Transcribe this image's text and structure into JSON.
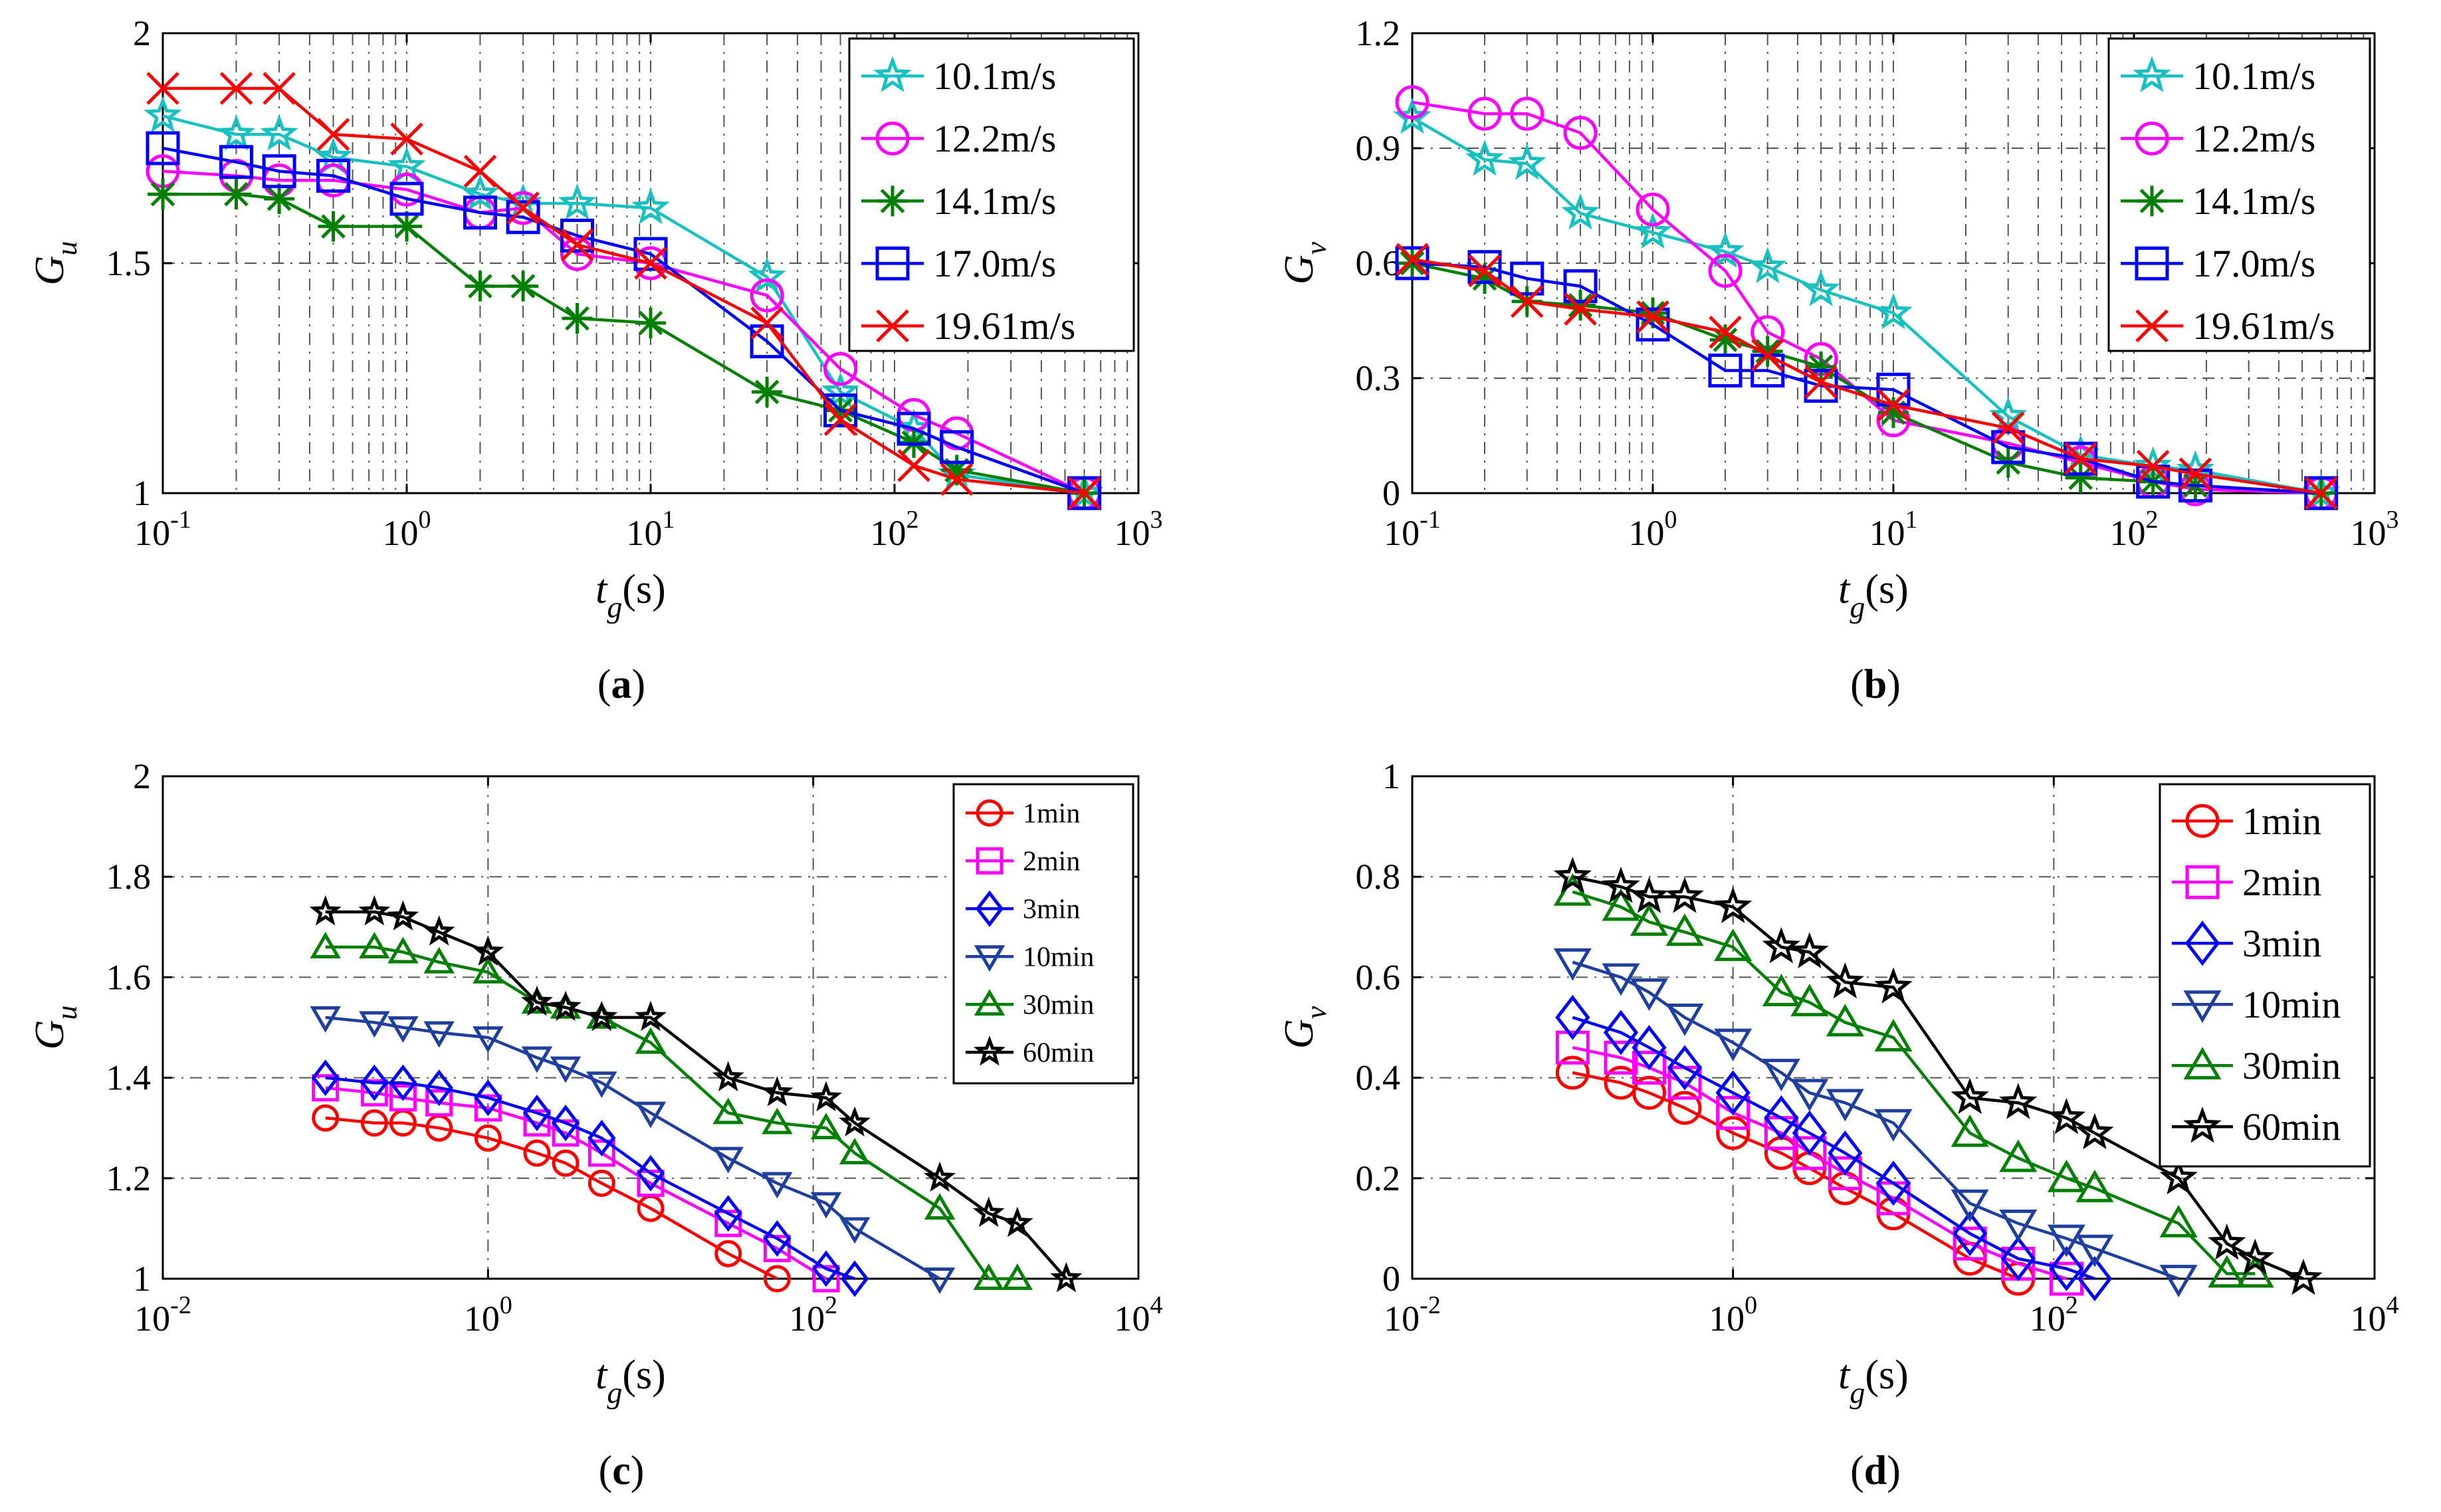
{
  "chart_data": [
    {
      "id": "a",
      "type": "line",
      "caption": "(a)",
      "xscale": "log",
      "xlim": [
        0.1,
        1000
      ],
      "xticks": [
        {
          "v": 0.1,
          "b": "10",
          "e": "-1"
        },
        {
          "v": 1,
          "b": "10",
          "e": "0"
        },
        {
          "v": 10,
          "b": "10",
          "e": "1"
        },
        {
          "v": 100,
          "b": "10",
          "e": "2"
        },
        {
          "v": 1000,
          "b": "10",
          "e": "3"
        }
      ],
      "ylim": [
        1,
        2
      ],
      "yticks": [
        {
          "v": 1,
          "l": "1"
        },
        {
          "v": 1.5,
          "l": "1.5"
        },
        {
          "v": 2,
          "l": "2"
        }
      ],
      "xlabel": {
        "main": "t",
        "sub": "g",
        "rest": "(s)"
      },
      "ylabel": {
        "main": "G",
        "sub": "u"
      },
      "grid": "minor",
      "legend_position": "top-right",
      "series": [
        {
          "name": "10.1m/s",
          "color": "#19C0C0",
          "marker": "star5",
          "x": [
            0.1,
            0.2,
            0.3,
            0.5,
            1,
            2,
            3,
            5,
            10,
            30,
            60,
            120,
            180,
            600
          ],
          "y": [
            1.82,
            1.78,
            1.78,
            1.73,
            1.71,
            1.65,
            1.63,
            1.63,
            1.62,
            1.47,
            1.22,
            1.14,
            1.04,
            1.0
          ]
        },
        {
          "name": "12.2m/s",
          "color": "#FF00FF",
          "marker": "circle",
          "x": [
            0.1,
            0.2,
            0.3,
            0.5,
            1,
            2,
            3,
            5,
            10,
            30,
            60,
            120,
            180,
            600
          ],
          "y": [
            1.7,
            1.69,
            1.68,
            1.68,
            1.66,
            1.61,
            1.62,
            1.52,
            1.5,
            1.43,
            1.27,
            1.17,
            1.13,
            1.0
          ]
        },
        {
          "name": "14.1m/s",
          "color": "#007F00",
          "marker": "asterisk",
          "x": [
            0.1,
            0.2,
            0.3,
            0.5,
            1,
            2,
            3,
            5,
            10,
            30,
            60,
            120,
            180,
            600
          ],
          "y": [
            1.65,
            1.65,
            1.64,
            1.58,
            1.58,
            1.45,
            1.45,
            1.38,
            1.37,
            1.22,
            1.18,
            1.11,
            1.05,
            1.0
          ]
        },
        {
          "name": "17.0m/s",
          "color": "#0000FF",
          "marker": "square",
          "x": [
            0.1,
            0.2,
            0.3,
            0.5,
            1,
            2,
            3,
            5,
            10,
            30,
            60,
            120,
            180,
            600
          ],
          "y": [
            1.75,
            1.72,
            1.7,
            1.69,
            1.64,
            1.61,
            1.6,
            1.56,
            1.52,
            1.33,
            1.18,
            1.14,
            1.1,
            1.0
          ]
        },
        {
          "name": "19.61m/s",
          "color": "#FF0000",
          "marker": "x",
          "x": [
            0.1,
            0.2,
            0.3,
            0.5,
            1,
            2,
            3,
            5,
            10,
            30,
            60,
            120,
            180,
            600
          ],
          "y": [
            1.88,
            1.88,
            1.88,
            1.78,
            1.77,
            1.7,
            1.62,
            1.54,
            1.5,
            1.37,
            1.16,
            1.06,
            1.03,
            1.0
          ]
        }
      ]
    },
    {
      "id": "b",
      "type": "line",
      "caption": "(b)",
      "xscale": "log",
      "xlim": [
        0.1,
        1000
      ],
      "xticks": [
        {
          "v": 0.1,
          "b": "10",
          "e": "-1"
        },
        {
          "v": 1,
          "b": "10",
          "e": "0"
        },
        {
          "v": 10,
          "b": "10",
          "e": "1"
        },
        {
          "v": 100,
          "b": "10",
          "e": "2"
        },
        {
          "v": 1000,
          "b": "10",
          "e": "3"
        }
      ],
      "ylim": [
        0,
        1.2
      ],
      "yticks": [
        {
          "v": 0,
          "l": "0"
        },
        {
          "v": 0.3,
          "l": "0.3"
        },
        {
          "v": 0.6,
          "l": "0.6"
        },
        {
          "v": 0.9,
          "l": "0.9"
        },
        {
          "v": 1.2,
          "l": "1.2"
        }
      ],
      "xlabel": {
        "main": "t",
        "sub": "g",
        "rest": "(s)"
      },
      "ylabel": {
        "main": "G",
        "sub": "v"
      },
      "grid": "minor",
      "legend_position": "top-right",
      "series": [
        {
          "name": "10.1m/s",
          "color": "#19C0C0",
          "marker": "star5",
          "x": [
            0.1,
            0.2,
            0.3,
            0.5,
            1,
            2,
            3,
            5,
            10,
            30,
            60,
            120,
            180,
            600
          ],
          "y": [
            0.98,
            0.87,
            0.86,
            0.73,
            0.68,
            0.63,
            0.59,
            0.53,
            0.47,
            0.2,
            0.1,
            0.07,
            0.06,
            0.0
          ]
        },
        {
          "name": "12.2m/s",
          "color": "#FF00FF",
          "marker": "circle",
          "x": [
            0.1,
            0.2,
            0.3,
            0.5,
            1,
            2,
            3,
            5,
            10,
            30,
            60,
            120,
            180,
            600
          ],
          "y": [
            1.02,
            0.99,
            0.99,
            0.94,
            0.74,
            0.58,
            0.42,
            0.35,
            0.19,
            0.13,
            0.08,
            0.03,
            0.01,
            0.0
          ]
        },
        {
          "name": "14.1m/s",
          "color": "#007F00",
          "marker": "asterisk",
          "x": [
            0.1,
            0.2,
            0.3,
            0.5,
            1,
            2,
            3,
            5,
            10,
            30,
            60,
            120,
            180,
            600
          ],
          "y": [
            0.6,
            0.56,
            0.5,
            0.49,
            0.47,
            0.4,
            0.37,
            0.33,
            0.21,
            0.08,
            0.04,
            0.03,
            0.02,
            0.0
          ]
        },
        {
          "name": "17.0m/s",
          "color": "#0000FF",
          "marker": "square",
          "x": [
            0.1,
            0.2,
            0.3,
            0.5,
            1,
            2,
            3,
            5,
            10,
            30,
            60,
            120,
            180,
            600
          ],
          "y": [
            0.6,
            0.59,
            0.56,
            0.54,
            0.44,
            0.32,
            0.32,
            0.28,
            0.27,
            0.12,
            0.09,
            0.03,
            0.02,
            0.0
          ]
        },
        {
          "name": "19.61m/s",
          "color": "#FF0000",
          "marker": "x",
          "x": [
            0.1,
            0.2,
            0.3,
            0.5,
            1,
            2,
            3,
            5,
            10,
            30,
            60,
            120,
            180,
            600
          ],
          "y": [
            0.61,
            0.58,
            0.5,
            0.48,
            0.46,
            0.42,
            0.36,
            0.29,
            0.23,
            0.17,
            0.09,
            0.07,
            0.05,
            0.0
          ]
        }
      ]
    },
    {
      "id": "c",
      "type": "line",
      "caption": "(c)",
      "xscale": "log",
      "xlim": [
        0.01,
        10000
      ],
      "xticks": [
        {
          "v": 0.01,
          "b": "10",
          "e": "-2"
        },
        {
          "v": 1,
          "b": "10",
          "e": "0"
        },
        {
          "v": 100,
          "b": "10",
          "e": "2"
        },
        {
          "v": 10000,
          "b": "10",
          "e": "4"
        }
      ],
      "ylim": [
        1,
        2
      ],
      "yticks": [
        {
          "v": 1,
          "l": "1"
        },
        {
          "v": 1.2,
          "l": "1.2"
        },
        {
          "v": 1.4,
          "l": "1.4"
        },
        {
          "v": 1.6,
          "l": "1.6"
        },
        {
          "v": 1.8,
          "l": "1.8"
        },
        {
          "v": 2,
          "l": "2"
        }
      ],
      "xlabel": {
        "main": "t",
        "sub": "g",
        "rest": "(s)"
      },
      "ylabel": {
        "main": "G",
        "sub": "u"
      },
      "grid": "major",
      "legend_position": "top-right",
      "series": [
        {
          "name": "1min",
          "color": "#FF0000",
          "marker": "circle",
          "x": [
            0.1,
            0.2,
            0.3,
            0.5,
            1,
            2,
            3,
            5,
            10,
            30,
            60
          ],
          "y": [
            1.32,
            1.31,
            1.31,
            1.3,
            1.28,
            1.25,
            1.23,
            1.19,
            1.14,
            1.05,
            1.0
          ]
        },
        {
          "name": "2min",
          "color": "#FF00FF",
          "marker": "square",
          "x": [
            0.1,
            0.2,
            0.3,
            0.5,
            1,
            2,
            3,
            5,
            10,
            30,
            60,
            120
          ],
          "y": [
            1.38,
            1.37,
            1.36,
            1.35,
            1.34,
            1.31,
            1.29,
            1.25,
            1.19,
            1.11,
            1.06,
            1.0
          ]
        },
        {
          "name": "3min",
          "color": "#0000FF",
          "marker": "diamond",
          "x": [
            0.1,
            0.2,
            0.3,
            0.5,
            1,
            2,
            3,
            5,
            10,
            30,
            60,
            120,
            180
          ],
          "y": [
            1.4,
            1.39,
            1.39,
            1.38,
            1.36,
            1.33,
            1.31,
            1.28,
            1.21,
            1.13,
            1.08,
            1.02,
            1.0
          ]
        },
        {
          "name": "10min",
          "color": "#1F3F9F",
          "marker": "tri_down",
          "x": [
            0.1,
            0.2,
            0.3,
            0.5,
            1,
            2,
            3,
            5,
            10,
            30,
            60,
            120,
            180,
            600
          ],
          "y": [
            1.52,
            1.51,
            1.5,
            1.49,
            1.48,
            1.44,
            1.42,
            1.39,
            1.33,
            1.24,
            1.19,
            1.15,
            1.1,
            1.0
          ]
        },
        {
          "name": "30min",
          "color": "#007F00",
          "marker": "tri_up",
          "x": [
            0.1,
            0.2,
            0.3,
            0.5,
            1,
            2,
            3,
            5,
            10,
            30,
            60,
            120,
            180,
            600,
            1200,
            1800
          ],
          "y": [
            1.66,
            1.66,
            1.65,
            1.63,
            1.61,
            1.55,
            1.54,
            1.52,
            1.47,
            1.33,
            1.31,
            1.3,
            1.25,
            1.14,
            1.0,
            1.0
          ]
        },
        {
          "name": "60min",
          "color": "#000000",
          "marker": "star5",
          "x": [
            0.1,
            0.2,
            0.3,
            0.5,
            1,
            2,
            3,
            5,
            10,
            30,
            60,
            120,
            180,
            600,
            1200,
            1800,
            3600
          ],
          "y": [
            1.73,
            1.73,
            1.72,
            1.69,
            1.65,
            1.55,
            1.54,
            1.52,
            1.52,
            1.4,
            1.37,
            1.36,
            1.31,
            1.2,
            1.13,
            1.11,
            1.0
          ]
        }
      ]
    },
    {
      "id": "d",
      "type": "line",
      "caption": "(d)",
      "xscale": "log",
      "xlim": [
        0.01,
        10000
      ],
      "xticks": [
        {
          "v": 0.01,
          "b": "10",
          "e": "-2"
        },
        {
          "v": 1,
          "b": "10",
          "e": "0"
        },
        {
          "v": 100,
          "b": "10",
          "e": "2"
        },
        {
          "v": 10000,
          "b": "10",
          "e": "4"
        }
      ],
      "ylim": [
        0,
        1
      ],
      "yticks": [
        {
          "v": 0,
          "l": "0"
        },
        {
          "v": 0.2,
          "l": "0.2"
        },
        {
          "v": 0.4,
          "l": "0.4"
        },
        {
          "v": 0.6,
          "l": "0.6"
        },
        {
          "v": 0.8,
          "l": "0.8"
        },
        {
          "v": 1,
          "l": "1"
        }
      ],
      "xlabel": {
        "main": "t",
        "sub": "g",
        "rest": "(s)"
      },
      "ylabel": {
        "main": "G",
        "sub": "v"
      },
      "grid": "major",
      "legend_position": "top-right",
      "series": [
        {
          "name": "1min",
          "color": "#FF0000",
          "marker": "circle",
          "x": [
            0.1,
            0.2,
            0.3,
            0.5,
            1,
            2,
            3,
            5,
            10,
            30,
            60
          ],
          "y": [
            0.41,
            0.39,
            0.37,
            0.34,
            0.29,
            0.25,
            0.22,
            0.18,
            0.13,
            0.04,
            0.0
          ]
        },
        {
          "name": "2min",
          "color": "#FF00FF",
          "marker": "square",
          "x": [
            0.1,
            0.2,
            0.3,
            0.5,
            1,
            2,
            3,
            5,
            10,
            30,
            60,
            120
          ],
          "y": [
            0.46,
            0.44,
            0.42,
            0.39,
            0.33,
            0.29,
            0.25,
            0.21,
            0.16,
            0.07,
            0.03,
            0.0
          ]
        },
        {
          "name": "3min",
          "color": "#0000FF",
          "marker": "diamond",
          "x": [
            0.1,
            0.2,
            0.3,
            0.5,
            1,
            2,
            3,
            5,
            10,
            30,
            60,
            120,
            180
          ],
          "y": [
            0.52,
            0.49,
            0.46,
            0.42,
            0.37,
            0.32,
            0.29,
            0.25,
            0.19,
            0.09,
            0.04,
            0.02,
            0.0
          ]
        },
        {
          "name": "10min",
          "color": "#1F3F9F",
          "marker": "tri_down",
          "x": [
            0.1,
            0.2,
            0.3,
            0.5,
            1,
            2,
            3,
            5,
            10,
            30,
            60,
            120,
            180,
            600
          ],
          "y": [
            0.63,
            0.6,
            0.57,
            0.52,
            0.47,
            0.41,
            0.37,
            0.35,
            0.31,
            0.15,
            0.11,
            0.08,
            0.06,
            0.0
          ]
        },
        {
          "name": "30min",
          "color": "#007F00",
          "marker": "tri_up",
          "x": [
            0.1,
            0.2,
            0.3,
            0.5,
            1,
            2,
            3,
            5,
            10,
            30,
            60,
            120,
            180,
            600,
            1200,
            1800
          ],
          "y": [
            0.77,
            0.74,
            0.71,
            0.69,
            0.66,
            0.57,
            0.55,
            0.51,
            0.48,
            0.29,
            0.24,
            0.2,
            0.18,
            0.11,
            0.01,
            0.01
          ]
        },
        {
          "name": "60min",
          "color": "#000000",
          "marker": "star5",
          "x": [
            0.1,
            0.2,
            0.3,
            0.5,
            1,
            2,
            3,
            5,
            10,
            30,
            60,
            120,
            180,
            600,
            1200,
            1800,
            3600
          ],
          "y": [
            0.8,
            0.78,
            0.76,
            0.76,
            0.74,
            0.66,
            0.65,
            0.59,
            0.58,
            0.36,
            0.35,
            0.32,
            0.29,
            0.2,
            0.07,
            0.04,
            0.0
          ]
        }
      ]
    }
  ]
}
